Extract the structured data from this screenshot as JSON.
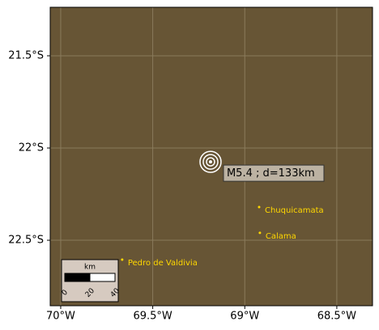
{
  "map": {
    "xlim": [
      -70.057,
      -68.306
    ],
    "ylim": [
      -22.855,
      -21.237
    ],
    "xticks": [
      {
        "value": -70,
        "label": "70°W"
      },
      {
        "value": -69.5,
        "label": "69.5°W"
      },
      {
        "value": -69,
        "label": "69°W"
      },
      {
        "value": -68.5,
        "label": "68.5°W"
      }
    ],
    "yticks": [
      {
        "value": -21.5,
        "label": "21.5°S"
      },
      {
        "value": -22,
        "label": "22°S"
      },
      {
        "value": -22.5,
        "label": "22.5°S"
      }
    ],
    "event": {
      "lon": -69.186,
      "lat": -22.075,
      "label": "M5.4 ; d=133km"
    },
    "places": [
      {
        "name": "Chuquicamata",
        "lon": -68.922,
        "lat": -22.32
      },
      {
        "name": "Calama",
        "lon": -68.918,
        "lat": -22.46
      },
      {
        "name": "Pedro de Valdivia",
        "lon": -69.666,
        "lat": -22.605
      }
    ],
    "scale_bar": {
      "unit": "km",
      "ticks": [
        0,
        20,
        40
      ]
    }
  }
}
